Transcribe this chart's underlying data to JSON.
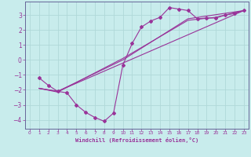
{
  "xlabel": "Windchill (Refroidissement éolien,°C)",
  "background_color": "#c8ecec",
  "grid_color": "#b0d8d8",
  "line_color": "#993399",
  "spine_color": "#666699",
  "xlim": [
    -0.5,
    23.5
  ],
  "ylim": [
    -4.6,
    3.9
  ],
  "xticks": [
    0,
    1,
    2,
    3,
    4,
    5,
    6,
    7,
    8,
    9,
    10,
    11,
    12,
    13,
    14,
    15,
    16,
    17,
    18,
    19,
    20,
    21,
    22,
    23
  ],
  "yticks": [
    -4,
    -3,
    -2,
    -1,
    0,
    1,
    2,
    3
  ],
  "series": [
    [
      [
        1,
        -1.2
      ],
      [
        2,
        -1.7
      ],
      [
        3,
        -2.1
      ],
      [
        4,
        -2.2
      ],
      [
        5,
        -3.0
      ],
      [
        6,
        -3.5
      ],
      [
        7,
        -3.85
      ],
      [
        8,
        -4.1
      ],
      [
        9,
        -3.55
      ],
      [
        10,
        -0.35
      ],
      [
        11,
        1.1
      ],
      [
        12,
        2.2
      ],
      [
        13,
        2.6
      ],
      [
        14,
        2.85
      ],
      [
        15,
        3.5
      ],
      [
        16,
        3.4
      ],
      [
        17,
        3.3
      ],
      [
        18,
        2.75
      ],
      [
        19,
        2.8
      ],
      [
        20,
        2.8
      ],
      [
        21,
        3.0
      ],
      [
        22,
        3.1
      ],
      [
        23,
        3.3
      ]
    ],
    [
      [
        1,
        -1.9
      ],
      [
        3,
        -2.1
      ],
      [
        23,
        3.3
      ]
    ],
    [
      [
        1,
        -1.9
      ],
      [
        3,
        -2.1
      ],
      [
        10,
        0.0
      ],
      [
        17,
        2.75
      ],
      [
        23,
        3.3
      ]
    ],
    [
      [
        1,
        -1.9
      ],
      [
        3,
        -2.15
      ],
      [
        10,
        0.1
      ],
      [
        17,
        2.65
      ],
      [
        20,
        2.85
      ],
      [
        23,
        3.3
      ]
    ]
  ]
}
